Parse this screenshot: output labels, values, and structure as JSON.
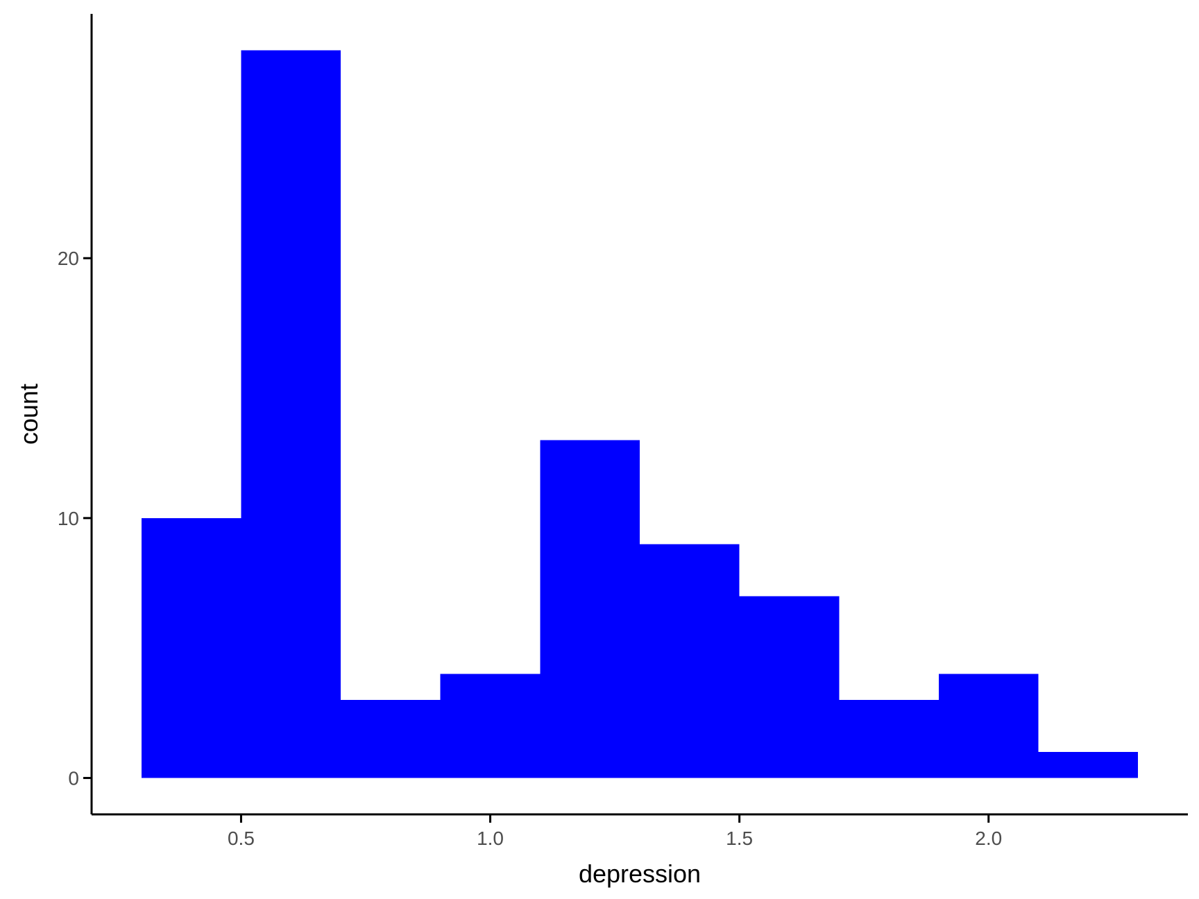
{
  "chart_data": {
    "type": "histogram",
    "bins": [
      {
        "x0": 0.3,
        "x1": 0.5,
        "count": 10
      },
      {
        "x0": 0.5,
        "x1": 0.7,
        "count": 28
      },
      {
        "x0": 0.7,
        "x1": 0.9,
        "count": 3
      },
      {
        "x0": 0.9,
        "x1": 1.1,
        "count": 4
      },
      {
        "x0": 1.1,
        "x1": 1.3,
        "count": 13
      },
      {
        "x0": 1.3,
        "x1": 1.5,
        "count": 9
      },
      {
        "x0": 1.5,
        "x1": 1.7,
        "count": 7
      },
      {
        "x0": 1.7,
        "x1": 1.9,
        "count": 3
      },
      {
        "x0": 1.9,
        "x1": 2.1,
        "count": 4
      },
      {
        "x0": 2.1,
        "x1": 2.3,
        "count": 1
      }
    ],
    "fill_color": "#0000FF",
    "xlabel": "depression",
    "ylabel": "count",
    "xlim": [
      0.2,
      2.4
    ],
    "ylim": [
      -1.4,
      29.4
    ],
    "x_ticks": [
      {
        "value": 0.5,
        "label": "0.5"
      },
      {
        "value": 1.0,
        "label": "1.0"
      },
      {
        "value": 1.5,
        "label": "1.5"
      },
      {
        "value": 2.0,
        "label": "2.0"
      }
    ],
    "y_ticks": [
      {
        "value": 0,
        "label": "0"
      },
      {
        "value": 10,
        "label": "10"
      },
      {
        "value": 20,
        "label": "20"
      }
    ],
    "grid": false,
    "legend": "none"
  }
}
